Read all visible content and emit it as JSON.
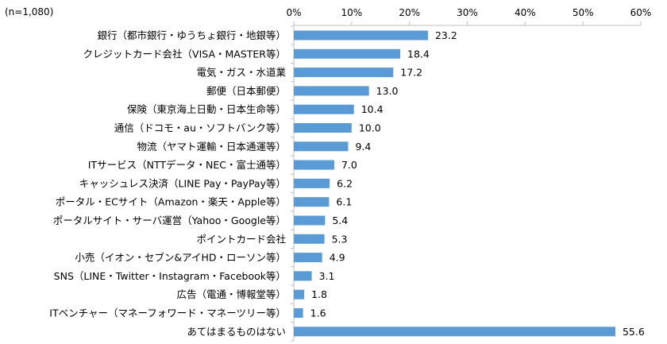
{
  "note": "(n=1,080)",
  "chart_data": {
    "type": "bar",
    "orientation": "horizontal",
    "categories": [
      "銀行（都市銀行・ゆうちょ銀行・地銀等）",
      "クレジットカード会社（VISA・MASTER等）",
      "電気・ガス・水道業",
      "郵便（日本郵便）",
      "保険（東京海上日動・日本生命等）",
      "通信（ドコモ・au・ソフトバンク等）",
      "物流（ヤマト運輸・日本通運等）",
      "ITサービス（NTTデータ・NEC・富士通等）",
      "キャッシュレス決済（LINE Pay・PayPay等）",
      "ポータル・ECサイト（Amazon・楽天・Apple等）",
      "ポータルサイト・サーバ運営（Yahoo・Google等）",
      "ポイントカード会社",
      "小売（イオン・セブン&アイHD・ローソン等）",
      "SNS（LINE・Twitter・Instagram・Facebook等）",
      "広告（電通・博報堂等）",
      "ITベンチャー（マネーフォワード・マネーツリー等）",
      "あてはまるものはない"
    ],
    "values": [
      23.2,
      18.4,
      17.2,
      13.0,
      10.4,
      10.0,
      9.4,
      7.0,
      6.2,
      6.1,
      5.4,
      5.3,
      4.9,
      3.1,
      1.8,
      1.6,
      55.6
    ],
    "value_labels": [
      "23.2",
      "18.4",
      "17.2",
      "13.0",
      "10.4",
      "10.0",
      "9.4",
      "7.0",
      "6.2",
      "6.1",
      "5.4",
      "5.3",
      "4.9",
      "3.1",
      "1.8",
      "1.6",
      "55.6"
    ],
    "xlim": [
      0,
      60
    ],
    "ticks": [
      0,
      10,
      20,
      30,
      40,
      50,
      60
    ],
    "tick_labels": [
      "0%",
      "10%",
      "20%",
      "30%",
      "40%",
      "50%",
      "60%"
    ],
    "axis_position": "top",
    "grid": false,
    "bar_color": "#5b9bd5",
    "axis_color": "#bfbfbf"
  }
}
